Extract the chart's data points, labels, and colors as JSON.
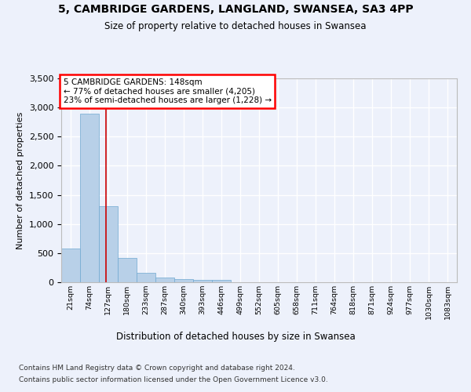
{
  "title1": "5, CAMBRIDGE GARDENS, LANGLAND, SWANSEA, SA3 4PP",
  "title2": "Size of property relative to detached houses in Swansea",
  "xlabel": "Distribution of detached houses by size in Swansea",
  "ylabel": "Number of detached properties",
  "footnote1": "Contains HM Land Registry data © Crown copyright and database right 2024.",
  "footnote2": "Contains public sector information licensed under the Open Government Licence v3.0.",
  "annotation_line1": "5 CAMBRIDGE GARDENS: 148sqm",
  "annotation_line2": "← 77% of detached houses are smaller (4,205)",
  "annotation_line3": "23% of semi-detached houses are larger (1,228) →",
  "bar_labels": [
    "21sqm",
    "74sqm",
    "127sqm",
    "180sqm",
    "233sqm",
    "287sqm",
    "340sqm",
    "393sqm",
    "446sqm",
    "499sqm",
    "552sqm",
    "605sqm",
    "658sqm",
    "711sqm",
    "764sqm",
    "818sqm",
    "871sqm",
    "924sqm",
    "977sqm",
    "1030sqm",
    "1083sqm"
  ],
  "bar_values": [
    580,
    2900,
    1300,
    420,
    160,
    80,
    50,
    45,
    40,
    0,
    0,
    0,
    0,
    0,
    0,
    0,
    0,
    0,
    0,
    0,
    0
  ],
  "bar_edges": [
    21,
    74,
    127,
    180,
    233,
    287,
    340,
    393,
    446,
    499,
    552,
    605,
    658,
    711,
    764,
    818,
    871,
    924,
    977,
    1030,
    1083
  ],
  "bar_color": "#b8d0e8",
  "bar_edgecolor": "#6fa8d0",
  "red_line_x": 148,
  "red_line_color": "#cc0000",
  "ylim_max": 3500,
  "yticks": [
    0,
    500,
    1000,
    1500,
    2000,
    2500,
    3000,
    3500
  ],
  "background_color": "#edf1fb",
  "grid_color": "#ffffff"
}
